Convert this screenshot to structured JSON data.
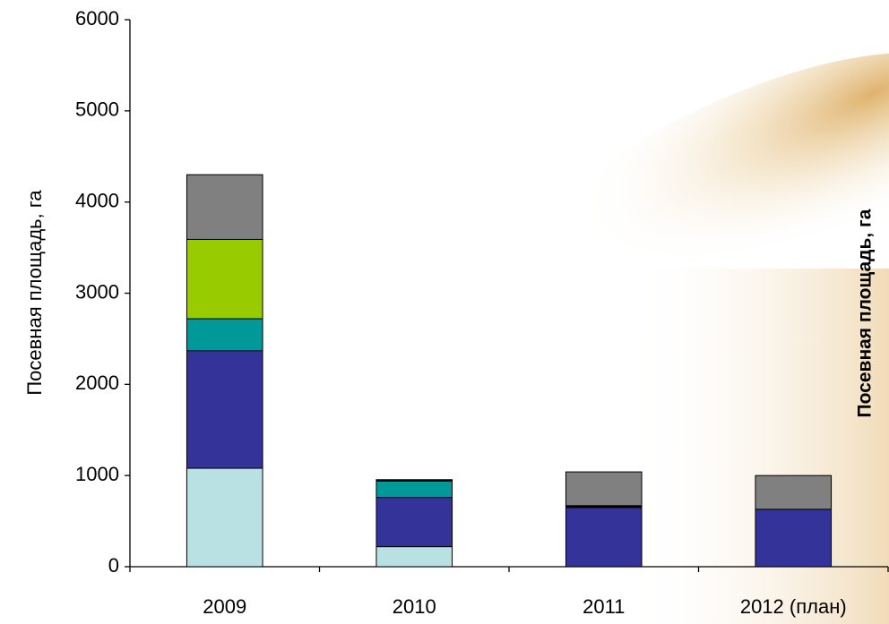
{
  "chart_data": {
    "type": "stacked_bar",
    "y_label": "Посевная площадь, га",
    "secondary_axis_label": "Посевная площадь, га",
    "categories": [
      "2009",
      "2010",
      "2011",
      "2012 (план)"
    ],
    "series": [
      {
        "color": "#b9e0e2",
        "values": [
          1080,
          220,
          0,
          0
        ]
      },
      {
        "color": "#333399",
        "values": [
          1290,
          540,
          650,
          630
        ]
      },
      {
        "color": "#009999",
        "values": [
          350,
          180,
          0,
          0
        ]
      },
      {
        "color": "#99cc00",
        "values": [
          870,
          0,
          0,
          0
        ]
      },
      {
        "color": "#000000",
        "values": [
          0,
          15,
          20,
          0
        ]
      },
      {
        "color": "#808080",
        "values": [
          710,
          0,
          370,
          370
        ]
      }
    ],
    "ylim": [
      0,
      6000
    ],
    "yticks": [
      0,
      1000,
      2000,
      3000,
      4000,
      5000,
      6000
    ]
  }
}
